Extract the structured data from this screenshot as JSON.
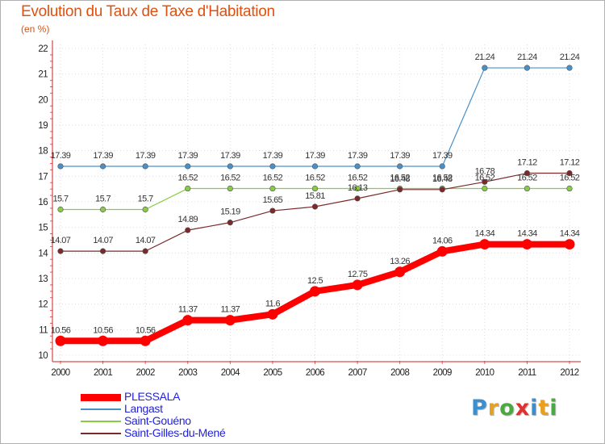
{
  "chart_data": {
    "type": "line",
    "title": "Evolution du Taux de Taxe d'Habitation",
    "subtitle": "(en %)",
    "xlabel": "",
    "ylabel": "",
    "x": [
      "2000",
      "2001",
      "2002",
      "2003",
      "2004",
      "2005",
      "2006",
      "2007",
      "2008",
      "2009",
      "2010",
      "2011",
      "2012"
    ],
    "ylim": [
      10,
      22
    ],
    "yticks": [
      10,
      11,
      12,
      13,
      14,
      15,
      16,
      17,
      18,
      19,
      20,
      21,
      22
    ],
    "grid": true,
    "legend_position": "bottom-left",
    "series": [
      {
        "name": "PLESSALA",
        "color": "#ff0000",
        "emphasis": "thick",
        "values": [
          10.56,
          10.56,
          10.56,
          11.37,
          11.37,
          11.6,
          12.5,
          12.75,
          13.26,
          14.06,
          14.34,
          14.34,
          14.34
        ],
        "labels": [
          "10.56",
          "10.56",
          "10.56",
          "11.37",
          "11.37",
          "11.6",
          "12.5",
          "12.75",
          "13.26",
          "14.06",
          "14.34",
          "14.34",
          "14.34"
        ]
      },
      {
        "name": "Langast",
        "color": "#4a90c8",
        "values": [
          17.39,
          17.39,
          17.39,
          17.39,
          17.39,
          17.39,
          17.39,
          17.39,
          17.39,
          17.39,
          21.24,
          21.24,
          21.24
        ],
        "labels": [
          "17.39",
          "17.39",
          "17.39",
          "17.39",
          "17.39",
          "17.39",
          "17.39",
          "17.39",
          "17.39",
          "17.39",
          "21.24",
          "21.24",
          "21.24"
        ]
      },
      {
        "name": "Saint-Gouéno",
        "color": "#88cc44",
        "values": [
          15.7,
          15.7,
          15.7,
          16.52,
          16.52,
          16.52,
          16.52,
          16.52,
          16.52,
          16.52,
          16.52,
          16.52,
          16.52
        ],
        "labels": [
          "15.7",
          "15.7",
          "15.7",
          "16.52",
          "16.52",
          "16.52",
          "16.52",
          "16.52",
          "16.52",
          "16.52",
          "16.52",
          "16.52",
          "16.52"
        ]
      },
      {
        "name": "Saint-Gilles-du-Mené",
        "color": "#7a2a2a",
        "values": [
          14.07,
          14.07,
          14.07,
          14.89,
          15.19,
          15.65,
          15.81,
          16.13,
          16.48,
          16.48,
          16.78,
          17.12,
          17.12
        ],
        "labels": [
          "14.07",
          "14.07",
          "14.07",
          "14.89",
          "15.19",
          "15.65",
          "15.81",
          "16.13",
          "16.48",
          "16.48",
          "16.78",
          "17.12",
          "17.12"
        ]
      }
    ]
  },
  "logo": {
    "letters": [
      "P",
      "r",
      "o",
      "x",
      "i",
      "t",
      "i"
    ],
    "colors": [
      "#3a8fd0",
      "#e8a020",
      "#4aaa40",
      "#e03030",
      "#3a8fd0",
      "#e8a020",
      "#4aaa40"
    ]
  }
}
